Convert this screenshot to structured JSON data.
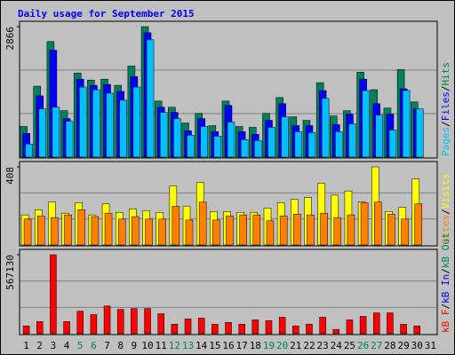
{
  "chart_data": {
    "type": "bar",
    "title": "Daily usage for September 2015",
    "categories": [
      "1",
      "2",
      "3",
      "4",
      "5",
      "6",
      "7",
      "8",
      "9",
      "10",
      "11",
      "12",
      "13",
      "14",
      "15",
      "16",
      "17",
      "18",
      "19",
      "20",
      "21",
      "22",
      "23",
      "24",
      "25",
      "26",
      "27",
      "28",
      "29",
      "30",
      "31"
    ],
    "weekend": [
      4,
      5,
      11,
      12,
      18,
      19,
      25,
      26
    ],
    "weekend_color": "#00805c",
    "separator": "/",
    "panels": [
      {
        "ylim": [
          0,
          2866
        ],
        "yticks": [
          2866
        ],
        "series": [
          {
            "name": "Hits",
            "color": "#00805c",
            "values": [
              673,
              1558,
              2539,
              1020,
              1847,
              1693,
              1712,
              1577,
              2000,
              2866,
              1231,
              1096,
              750,
              962,
              692,
              1231,
              673,
              654,
              962,
              1308,
              885,
              808,
              1635,
              904,
              1020,
              1866,
              1481,
              1077,
              1924,
              1212,
              0
            ]
          },
          {
            "name": "Files",
            "color": "#0000ff",
            "values": [
              519,
              1346,
              2347,
              846,
              1712,
              1577,
              1597,
              1443,
              1770,
              2731,
              1096,
              981,
              577,
              846,
              558,
              1135,
              558,
              500,
              808,
              1173,
              692,
              692,
              1462,
              712,
              942,
              1712,
              1173,
              942,
              1500,
              1058,
              0
            ]
          },
          {
            "name": "Pages",
            "color": "#00c0ff",
            "values": [
              289,
              1058,
              1096,
              789,
              1539,
              1481,
              1404,
              1250,
              1539,
              2577,
              981,
              846,
              481,
              673,
              462,
              770,
              385,
              365,
              654,
              885,
              558,
              538,
              1289,
              558,
              731,
              1462,
              923,
              596,
              1462,
              1058,
              0
            ]
          }
        ]
      },
      {
        "ylim": [
          0,
          408
        ],
        "yticks": [
          408
        ],
        "series": [
          {
            "name": "Visits",
            "color": "#ffff00",
            "values": [
              157,
              184,
              224,
              166,
              220,
              157,
              215,
              170,
              188,
              179,
              170,
              309,
              202,
              327,
              175,
              175,
              170,
              170,
              193,
              220,
              238,
              247,
              323,
              260,
              282,
              224,
              408,
              175,
              197,
              345,
              0
            ]
          },
          {
            "name": "Sites",
            "color": "#ff8000",
            "values": [
              135,
              152,
              143,
              157,
              184,
              148,
              166,
              135,
              148,
              135,
              135,
              202,
              130,
              224,
              130,
              152,
              157,
              157,
              126,
              152,
              161,
              157,
              166,
              143,
              157,
              220,
              224,
              161,
              135,
              215,
              0
            ]
          }
        ]
      },
      {
        "ylim": [
          0,
          567130
        ],
        "yticks": [
          567130
        ],
        "series": [
          {
            "name": "kB F",
            "color": "#ff0000",
            "values": [
              56091,
              87253,
              567130,
              87253,
              162036,
              137108,
              199431,
              174500,
              180735,
              180735,
              143342,
              68554,
              105948,
              112179,
              68554,
              81018,
              68554,
              99716,
              93481,
              118411,
              56091,
              68554,
              118411,
              31161,
              99716,
              124643,
              149575,
              149575,
              68554,
              56091,
              0
            ]
          }
        ],
        "other_legend": [
          {
            "name": "kB In",
            "color": "#0000ff"
          },
          {
            "name": "kB Out",
            "color": "#00805c"
          }
        ]
      }
    ]
  }
}
